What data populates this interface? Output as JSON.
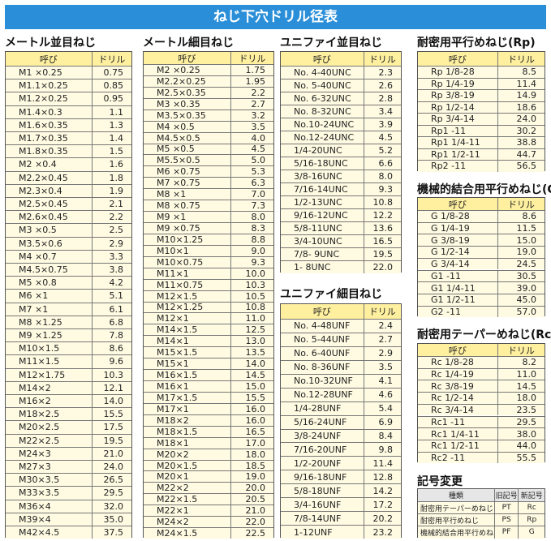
{
  "header": {
    "title": "ねじ下穴ドリル径表"
  },
  "sections": [
    {
      "title": "メートル並目ねじ",
      "columns": [
        "呼び",
        "ドリル"
      ],
      "rows": [
        [
          "M1 ×0.25",
          "0.75"
        ],
        [
          "M1.1×0.25",
          "0.85"
        ],
        [
          "M1.2×0.25",
          "0.95"
        ],
        [
          "M1.4×0.3",
          "1.1"
        ],
        [
          "M1.6×0.35",
          "1.3"
        ],
        [
          "M1.7×0.35",
          "1.4"
        ],
        [
          "M1.8×0.35",
          "1.5"
        ],
        [
          "M2 ×0.4",
          "1.6"
        ],
        [
          "M2.2×0.45",
          "1.8"
        ],
        [
          "M2.3×0.4",
          "1.9"
        ],
        [
          "M2.5×0.45",
          "2.1"
        ],
        [
          "M2.6×0.45",
          "2.2"
        ],
        [
          "M3 ×0.5",
          "2.5"
        ],
        [
          "M3.5×0.6",
          "2.9"
        ],
        [
          "M4 ×0.7",
          "3.3"
        ],
        [
          "M4.5×0.75",
          "3.8"
        ],
        [
          "M5 ×0.8",
          "4.2"
        ],
        [
          "M6 ×1",
          "5.1"
        ],
        [
          "M7 ×1",
          "6.1"
        ],
        [
          "M8 ×1.25",
          "6.8"
        ],
        [
          "M9 ×1.25",
          "7.8"
        ],
        [
          "M10×1.5",
          "8.6"
        ],
        [
          "M11×1.5",
          "9.6"
        ],
        [
          "M12×1.75",
          "10.3"
        ],
        [
          "M14×2",
          "12.1"
        ],
        [
          "M16×2",
          "14.0"
        ],
        [
          "M18×2.5",
          "15.5"
        ],
        [
          "M20×2.5",
          "17.5"
        ],
        [
          "M22×2.5",
          "19.5"
        ],
        [
          "M24×3",
          "21.0"
        ],
        [
          "M27×3",
          "24.0"
        ],
        [
          "M30×3.5",
          "26.5"
        ],
        [
          "M33×3.5",
          "29.5"
        ],
        [
          "M36×4",
          "32.0"
        ],
        [
          "M39×4",
          "35.0"
        ],
        [
          "M42×4.5",
          "37.5"
        ]
      ]
    },
    {
      "title": "メートル細目ねじ",
      "columns": [
        "呼び",
        "ドリル"
      ],
      "rows": [
        [
          "M2 ×0.25",
          "1.75"
        ],
        [
          "M2.2×0.25",
          "1.95"
        ],
        [
          "M2.5×0.35",
          "2.2"
        ],
        [
          "M3 ×0.35",
          "2.7"
        ],
        [
          "M3.5×0.35",
          "3.2"
        ],
        [
          "M4 ×0.5",
          "3.5"
        ],
        [
          "M4.5×0.5",
          "4.0"
        ],
        [
          "M5 ×0.5",
          "4.5"
        ],
        [
          "M5.5×0.5",
          "5.0"
        ],
        [
          "M6 ×0.75",
          "5.3"
        ],
        [
          "M7 ×0.75",
          "6.3"
        ],
        [
          "M8 ×1",
          "7.0"
        ],
        [
          "M8 ×0.75",
          "7.3"
        ],
        [
          "M9 ×1",
          "8.0"
        ],
        [
          "M9 ×0.75",
          "8.3"
        ],
        [
          "M10×1.25",
          "8.8"
        ],
        [
          "M10×1",
          "9.0"
        ],
        [
          "M10×0.75",
          "9.3"
        ],
        [
          "M11×1",
          "10.0"
        ],
        [
          "M11×0.75",
          "10.3"
        ],
        [
          "M12×1.5",
          "10.5"
        ],
        [
          "M12×1.25",
          "10.8"
        ],
        [
          "M12×1",
          "11.0"
        ],
        [
          "M14×1.5",
          "12.5"
        ],
        [
          "M14×1",
          "13.0"
        ],
        [
          "M15×1.5",
          "13.5"
        ],
        [
          "M15×1",
          "14.0"
        ],
        [
          "M16×1.5",
          "14.5"
        ],
        [
          "M16×1",
          "15.0"
        ],
        [
          "M17×1.5",
          "15.5"
        ],
        [
          "M17×1",
          "16.0"
        ],
        [
          "M18×2",
          "16.0"
        ],
        [
          "M18×1.5",
          "16.5"
        ],
        [
          "M18×1",
          "17.0"
        ],
        [
          "M20×2",
          "18.0"
        ],
        [
          "M20×1.5",
          "18.5"
        ],
        [
          "M20×1",
          "19.0"
        ],
        [
          "M22×2",
          "20.0"
        ],
        [
          "M22×1.5",
          "20.5"
        ],
        [
          "M22×1",
          "21.0"
        ],
        [
          "M24×2",
          "22.0"
        ],
        [
          "M24×1.5",
          "22.5"
        ]
      ]
    },
    {
      "title": "ユニファイ並目ねじ",
      "columns": [
        "呼び",
        "ドリル"
      ],
      "rows": [
        [
          "No. 4-40UNC",
          "2.3"
        ],
        [
          "No. 5-40UNC",
          "2.6"
        ],
        [
          "No. 6-32UNC",
          "2.8"
        ],
        [
          "No. 8-32UNC",
          "3.4"
        ],
        [
          "No.10-24UNC",
          "3.9"
        ],
        [
          "No.12-24UNC",
          "4.5"
        ],
        [
          "1/4-20UNC",
          "5.2"
        ],
        [
          "5/16-18UNC",
          "6.6"
        ],
        [
          "3/8-16UNC",
          "8.0"
        ],
        [
          "7/16-14UNC",
          "9.3"
        ],
        [
          "1/2-13UNC",
          "10.8"
        ],
        [
          "9/16-12UNC",
          "12.2"
        ],
        [
          "5/8-11UNC",
          "13.6"
        ],
        [
          "3/4-10UNC",
          "16.5"
        ],
        [
          "7/8- 9UNC",
          "19.5"
        ],
        [
          "1- 8UNC",
          "22.0"
        ]
      ]
    },
    {
      "title": "ユニファイ細目ねじ",
      "columns": [
        "呼び",
        "ドリル"
      ],
      "rows": [
        [
          "No. 4-48UNF",
          "2.4"
        ],
        [
          "No. 5-44UNF",
          "2.7"
        ],
        [
          "No. 6-40UNF",
          "2.9"
        ],
        [
          "No. 8-36UNF",
          "3.5"
        ],
        [
          "No.10-32UNF",
          "4.1"
        ],
        [
          "No.12-28UNF",
          "4.6"
        ],
        [
          "1/4-28UNF",
          "5.4"
        ],
        [
          "5/16-24UNF",
          "6.9"
        ],
        [
          "3/8-24UNF",
          "8.4"
        ],
        [
          "7/16-20UNF",
          "9.8"
        ],
        [
          "1/2-20UNF",
          "11.4"
        ],
        [
          "9/16-18UNF",
          "12.8"
        ],
        [
          "5/8-18UNF",
          "14.2"
        ],
        [
          "3/4-16UNF",
          "17.2"
        ],
        [
          "7/8-14UNF",
          "20.2"
        ],
        [
          "1-12UNF",
          "23.2"
        ]
      ]
    },
    {
      "title": "耐密用平行めねじ(Rp)",
      "columns": [
        "呼び",
        "ドリル"
      ],
      "rows": [
        [
          "Rp 1/8-28",
          "8.5"
        ],
        [
          "Rp 1/4-19",
          "11.4"
        ],
        [
          "Rp 3/8-19",
          "14.9"
        ],
        [
          "Rp 1/2-14",
          "18.6"
        ],
        [
          "Rp 3/4-14",
          "24.0"
        ],
        [
          "Rp1 -11",
          "30.2"
        ],
        [
          "Rp1 1/4-11",
          "38.8"
        ],
        [
          "Rp1 1/2-11",
          "44.7"
        ],
        [
          "Rp2 -11",
          "56.5"
        ]
      ]
    },
    {
      "title": "機械的結合用平行めねじ(G)",
      "columns": [
        "呼び",
        "ドリル"
      ],
      "rows": [
        [
          "G 1/8-28",
          "8.6"
        ],
        [
          "G 1/4-19",
          "11.5"
        ],
        [
          "G 3/8-19",
          "15.0"
        ],
        [
          "G 1/2-14",
          "19.0"
        ],
        [
          "G 3/4-14",
          "24.5"
        ],
        [
          "G1 -11",
          "30.5"
        ],
        [
          "G1 1/4-11",
          "39.0"
        ],
        [
          "G1 1/2-11",
          "45.0"
        ],
        [
          "G2 -11",
          "57.0"
        ]
      ]
    },
    {
      "title": "耐密用テーパーめねじ(Rc)",
      "columns": [
        "呼び",
        "ドリル"
      ],
      "rows": [
        [
          "Rc 1/8-28",
          "8.2"
        ],
        [
          "Rc 1/4-19",
          "11.0"
        ],
        [
          "Rc 3/8-19",
          "14.5"
        ],
        [
          "Rc 1/2-14",
          "18.0"
        ],
        [
          "Rc 3/4-14",
          "23.5"
        ],
        [
          "Rc1 -11",
          "29.5"
        ],
        [
          "Rc1 1/4-11",
          "38.0"
        ],
        [
          "Rc1 1/2-11",
          "44.0"
        ],
        [
          "Rc2 -11",
          "55.5"
        ]
      ]
    },
    {
      "title": "記号変更",
      "columns": [
        "種類",
        "旧記号",
        "新記号"
      ],
      "rows": [
        [
          "耐密用テーパーめねじ",
          "PT",
          "Rc"
        ],
        [
          "耐密用平行めねじ",
          "PS",
          "Rp"
        ],
        [
          "機械的結合用平行めねじ",
          "PF",
          "G"
        ]
      ]
    }
  ]
}
